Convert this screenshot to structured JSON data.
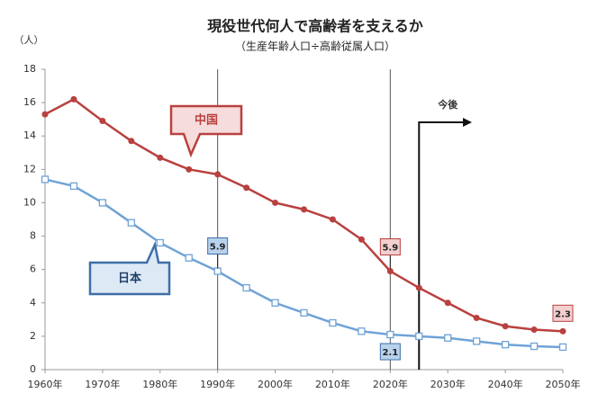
{
  "chart_data": {
    "type": "line",
    "title": "現役世代何人で高齢者を支えるか",
    "subtitle": "（生産年齢人口÷高齢従属人口）",
    "y_label": "（人）",
    "x": [
      1960,
      1965,
      1970,
      1975,
      1980,
      1985,
      1990,
      1995,
      2000,
      2005,
      2010,
      2015,
      2020,
      2025,
      2030,
      2035,
      2040,
      2045,
      2050
    ],
    "series": [
      {
        "name": "中国",
        "color": "#b8413f",
        "marker": "circle",
        "values": [
          15.3,
          16.2,
          14.9,
          13.7,
          12.7,
          12.0,
          11.7,
          10.9,
          10.0,
          9.6,
          9.0,
          7.8,
          5.9,
          4.9,
          4.0,
          3.1,
          2.6,
          2.4,
          2.3
        ]
      },
      {
        "name": "日本",
        "color": "#6fa3d6",
        "marker": "square",
        "values": [
          11.4,
          11.0,
          10.0,
          8.8,
          7.6,
          6.7,
          5.9,
          4.9,
          4.0,
          3.4,
          2.8,
          2.3,
          2.1,
          2.0,
          1.9,
          1.7,
          1.5,
          1.4,
          1.35
        ]
      }
    ],
    "xlim": [
      1960,
      2050
    ],
    "xticks": [
      {
        "value": 1960,
        "label": "1960年"
      },
      {
        "value": 1970,
        "label": "1970年"
      },
      {
        "value": 1980,
        "label": "1980年"
      },
      {
        "value": 1990,
        "label": "1990年"
      },
      {
        "value": 2000,
        "label": "2000年"
      },
      {
        "value": 2010,
        "label": "2010年"
      },
      {
        "value": 2020,
        "label": "2020年"
      },
      {
        "value": 2030,
        "label": "2030年"
      },
      {
        "value": 2040,
        "label": "2040年"
      },
      {
        "value": 2050,
        "label": "2050年"
      }
    ],
    "ylim": [
      0,
      18
    ],
    "yticks": [
      0,
      2,
      4,
      6,
      8,
      10,
      12,
      14,
      16,
      18
    ],
    "reference_lines": [
      1990,
      2020
    ],
    "annotation": {
      "text": "今後",
      "x": 2025
    }
  }
}
